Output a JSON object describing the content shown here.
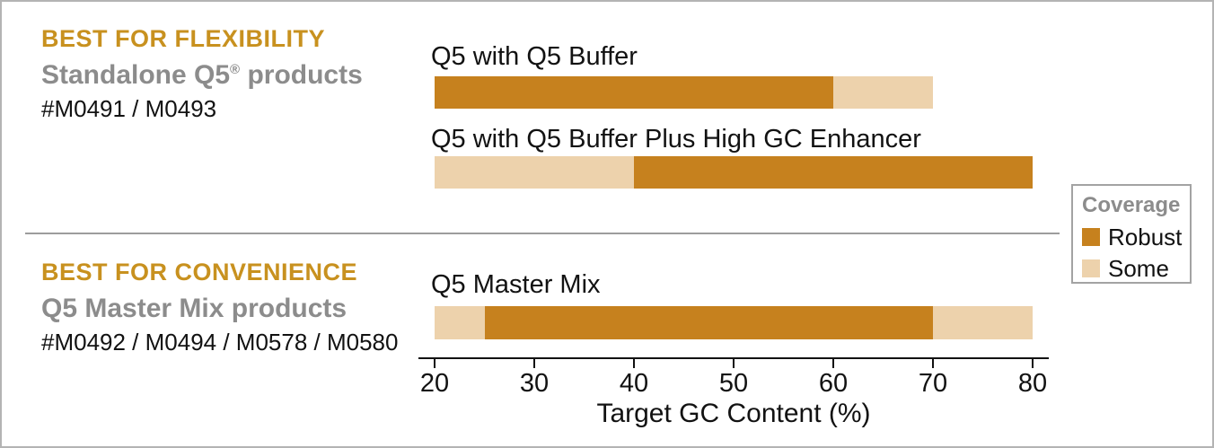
{
  "sections": [
    {
      "heading": "BEST FOR FLEXIBILITY",
      "subheading_prefix": "Standalone Q5",
      "subheading_sup": "®",
      "subheading_suffix": " products",
      "catalog": "#M0491 / M0493"
    },
    {
      "heading": "BEST FOR CONVENIENCE",
      "subheading_prefix": "Q5 Master Mix products",
      "subheading_sup": "",
      "subheading_suffix": "",
      "catalog": "#M0492 / M0494 / M0578 / M0580"
    }
  ],
  "colors": {
    "heading_orange": "#c8911f",
    "robust_orange": "#c6811e",
    "some_tan": "#edd2ac",
    "gray_text": "#8c8c8c",
    "axis_black": "#121212"
  },
  "chart_data": {
    "type": "bar",
    "orientation": "horizontal",
    "title": "",
    "xlabel": "Target GC Content (%)",
    "ylabel": "",
    "xlim": [
      20,
      80
    ],
    "xticks": [
      20,
      30,
      40,
      50,
      60,
      70,
      80
    ],
    "grid": false,
    "legend": {
      "title": "Coverage",
      "position": "right",
      "entries": [
        {
          "label": "Robust",
          "color": "#c6811e"
        },
        {
          "label": "Some",
          "color": "#edd2ac"
        }
      ]
    },
    "bars": [
      {
        "label": "Q5 with Q5 Buffer",
        "segments": [
          {
            "coverage": "Robust",
            "start": 20,
            "end": 60
          },
          {
            "coverage": "Some",
            "start": 60,
            "end": 70
          }
        ]
      },
      {
        "label": "Q5 with Q5 Buffer Plus High GC Enhancer",
        "segments": [
          {
            "coverage": "Some",
            "start": 20,
            "end": 40
          },
          {
            "coverage": "Robust",
            "start": 40,
            "end": 80
          }
        ]
      },
      {
        "label": "Q5 Master Mix",
        "segments": [
          {
            "coverage": "Some",
            "start": 20,
            "end": 25
          },
          {
            "coverage": "Robust",
            "start": 25,
            "end": 70
          },
          {
            "coverage": "Some",
            "start": 70,
            "end": 80
          }
        ]
      }
    ]
  }
}
